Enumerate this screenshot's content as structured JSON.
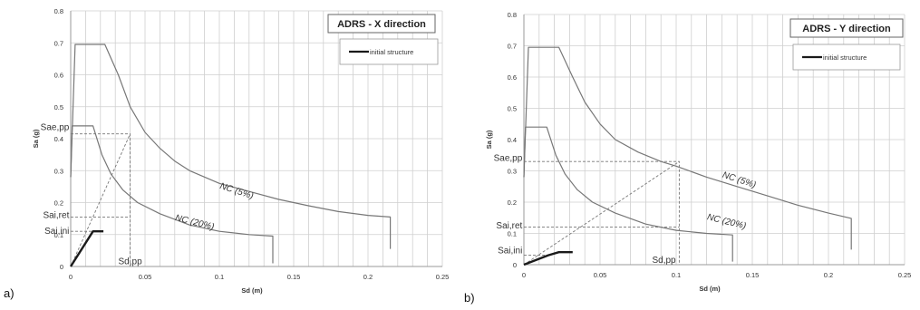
{
  "chart_data": [
    {
      "type": "line",
      "panel_label": "a)",
      "title": "ADRS - X direction",
      "xlabel": "Sd (m)",
      "ylabel": "Sa (g)",
      "xlim": [
        0,
        0.25
      ],
      "ylim": [
        0,
        0.8
      ],
      "xticks": [
        "0",
        "0.05",
        "0.1",
        "0.15",
        "0.2",
        "0.25"
      ],
      "yticks": [
        "0",
        "0.1",
        "0.2",
        "0.3",
        "0.4",
        "0.5",
        "0.6",
        "0.7",
        "0.8"
      ],
      "grid": true,
      "legend": {
        "position": "top-right",
        "entries": [
          "initial structure"
        ]
      },
      "series": [
        {
          "role": "nc5",
          "color": "#777777",
          "points": [
            [
              0,
              0.28
            ],
            [
              0.003,
              0.695
            ],
            [
              0.023,
              0.695
            ],
            [
              0.032,
              0.6
            ],
            [
              0.04,
              0.5
            ],
            [
              0.05,
              0.42
            ],
            [
              0.06,
              0.37
            ],
            [
              0.07,
              0.33
            ],
            [
              0.08,
              0.3
            ],
            [
              0.1,
              0.26
            ],
            [
              0.12,
              0.235
            ],
            [
              0.14,
              0.21
            ],
            [
              0.16,
              0.19
            ],
            [
              0.18,
              0.172
            ],
            [
              0.2,
              0.16
            ],
            [
              0.215,
              0.155
            ],
            [
              0.215,
              0.055
            ]
          ]
        },
        {
          "role": "nc20",
          "color": "#777777",
          "points": [
            [
              0,
              0.28
            ],
            [
              0.001,
              0.44
            ],
            [
              0.015,
              0.44
            ],
            [
              0.021,
              0.35
            ],
            [
              0.027,
              0.29
            ],
            [
              0.035,
              0.24
            ],
            [
              0.045,
              0.2
            ],
            [
              0.06,
              0.165
            ],
            [
              0.08,
              0.13
            ],
            [
              0.1,
              0.11
            ],
            [
              0.12,
              0.1
            ],
            [
              0.136,
              0.095
            ],
            [
              0.136,
              0.01
            ]
          ]
        },
        {
          "role": "initial",
          "name": "initial structure",
          "color": "#1a1a1a",
          "points": [
            [
              0,
              0
            ],
            [
              0.015,
              0.11
            ],
            [
              0.022,
              0.11
            ]
          ]
        }
      ],
      "dashed": [
        [
          [
            0,
            0
          ],
          [
            0.04,
            0.415
          ]
        ],
        [
          [
            0,
            0.415
          ],
          [
            0.04,
            0.415
          ],
          [
            0.04,
            0.0
          ]
        ],
        [
          [
            0,
            0.155
          ],
          [
            0.04,
            0.155
          ]
        ],
        [
          [
            0,
            0.11
          ],
          [
            0.015,
            0.11
          ]
        ]
      ],
      "annotations": [
        {
          "text": "Sae,pp",
          "at": [
            -0.001,
            0.435
          ],
          "anchor": "end"
        },
        {
          "text": "Sai,ret",
          "at": [
            -0.001,
            0.16
          ],
          "anchor": "end"
        },
        {
          "text": "Sai,ini",
          "at": [
            -0.001,
            0.11
          ],
          "anchor": "end"
        },
        {
          "text": "Sd,pp",
          "at": [
            0.04,
            0.015
          ],
          "anchor": "middle"
        }
      ],
      "curve_labels": [
        {
          "text": "NC (5%)",
          "at": [
            0.1,
            0.245
          ],
          "rotate": 18
        },
        {
          "text": "NC (20%)",
          "at": [
            0.07,
            0.145
          ],
          "rotate": 14
        }
      ]
    },
    {
      "type": "line",
      "panel_label": "b)",
      "title": "ADRS - Y direction",
      "xlabel": "Sd (m)",
      "ylabel": "Sa (g)",
      "xlim": [
        0,
        0.25
      ],
      "ylim": [
        0,
        0.8
      ],
      "xticks": [
        "0",
        "0.05",
        "0.1",
        "0.15",
        "0.2",
        "0.25"
      ],
      "yticks": [
        "0",
        "0.1",
        "0.2",
        "0.3",
        "0.4",
        "0.5",
        "0.6",
        "0.7",
        "0.8"
      ],
      "grid": true,
      "legend": {
        "position": "top-right",
        "entries": [
          "initial structure"
        ]
      },
      "series": [
        {
          "role": "nc5",
          "color": "#777777",
          "points": [
            [
              0,
              0.28
            ],
            [
              0.003,
              0.695
            ],
            [
              0.023,
              0.695
            ],
            [
              0.032,
              0.6
            ],
            [
              0.04,
              0.52
            ],
            [
              0.05,
              0.45
            ],
            [
              0.06,
              0.4
            ],
            [
              0.075,
              0.36
            ],
            [
              0.09,
              0.33
            ],
            [
              0.1,
              0.315
            ],
            [
              0.12,
              0.28
            ],
            [
              0.14,
              0.25
            ],
            [
              0.16,
              0.22
            ],
            [
              0.18,
              0.19
            ],
            [
              0.2,
              0.165
            ],
            [
              0.215,
              0.148
            ],
            [
              0.215,
              0.048
            ]
          ]
        },
        {
          "role": "nc20",
          "color": "#777777",
          "points": [
            [
              0,
              0.28
            ],
            [
              0.001,
              0.44
            ],
            [
              0.015,
              0.44
            ],
            [
              0.021,
              0.35
            ],
            [
              0.027,
              0.29
            ],
            [
              0.035,
              0.24
            ],
            [
              0.045,
              0.2
            ],
            [
              0.06,
              0.165
            ],
            [
              0.08,
              0.13
            ],
            [
              0.1,
              0.11
            ],
            [
              0.12,
              0.1
            ],
            [
              0.137,
              0.095
            ],
            [
              0.137,
              0.01
            ]
          ]
        },
        {
          "role": "initial",
          "name": "initial structure",
          "color": "#1a1a1a",
          "points": [
            [
              0,
              0
            ],
            [
              0.016,
              0.03
            ],
            [
              0.023,
              0.04
            ],
            [
              0.032,
              0.04
            ]
          ]
        }
      ],
      "dashed": [
        [
          [
            0,
            0
          ],
          [
            0.102,
            0.33
          ]
        ],
        [
          [
            0,
            0.33
          ],
          [
            0.102,
            0.33
          ],
          [
            0.102,
            0.0
          ]
        ],
        [
          [
            0,
            0.12
          ],
          [
            0.102,
            0.12
          ]
        ],
        [
          [
            0,
            0.03
          ],
          [
            0.016,
            0.03
          ]
        ]
      ],
      "annotations": [
        {
          "text": "Sae,pp",
          "at": [
            -0.001,
            0.34
          ],
          "anchor": "end"
        },
        {
          "text": "Sai,ret",
          "at": [
            -0.001,
            0.125
          ],
          "anchor": "end"
        },
        {
          "text": "Sai,ini",
          "at": [
            -0.001,
            0.045
          ],
          "anchor": "end"
        },
        {
          "text": "Sd,pp",
          "at": [
            0.092,
            0.015
          ],
          "anchor": "middle"
        }
      ],
      "curve_labels": [
        {
          "text": "NC (5%)",
          "at": [
            0.13,
            0.28
          ],
          "rotate": 18
        },
        {
          "text": "NC (20%)",
          "at": [
            0.12,
            0.145
          ],
          "rotate": 14
        }
      ]
    }
  ]
}
